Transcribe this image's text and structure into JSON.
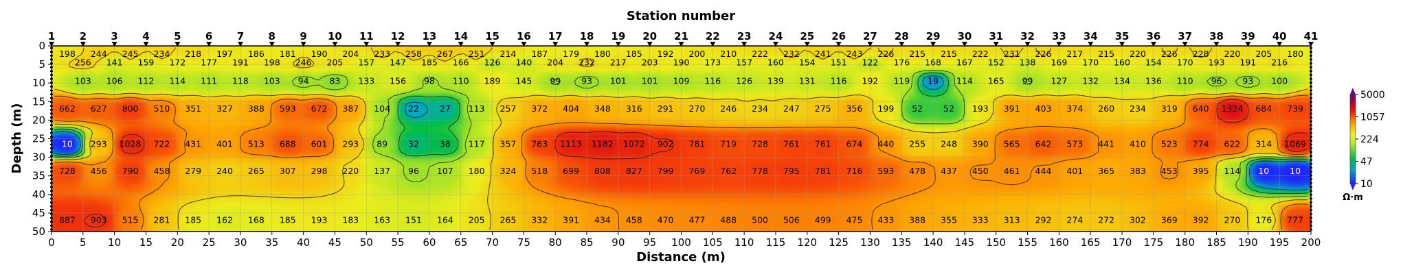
{
  "chart_data": {
    "type": "heatmap",
    "title": "",
    "x_top_label": "Station number",
    "xlabel": "Distance (m)",
    "ylabel": "Depth (m)",
    "xlim": [
      0,
      200
    ],
    "ylim": [
      50,
      0
    ],
    "log_color_scale": true,
    "grid": true,
    "x_ticks": [
      0,
      5,
      10,
      15,
      20,
      25,
      30,
      35,
      40,
      45,
      50,
      55,
      60,
      65,
      70,
      75,
      80,
      85,
      90,
      95,
      100,
      105,
      110,
      115,
      120,
      125,
      130,
      135,
      140,
      145,
      150,
      155,
      160,
      165,
      170,
      175,
      180,
      185,
      190,
      195,
      200
    ],
    "x_tick_labels": [
      "0",
      "5",
      "10",
      "15",
      "20",
      "25",
      "30",
      "35",
      "40",
      "45",
      "50",
      "55",
      "60",
      "65",
      "70",
      "75",
      "80",
      "85",
      "90",
      "95",
      "100",
      "105",
      "110",
      "115",
      "120",
      "125",
      "130",
      "135",
      "140",
      "145",
      "150",
      "155",
      "160",
      "165",
      "170",
      "175",
      "180",
      "185",
      "190",
      "195",
      "200"
    ],
    "y_ticks": [
      0,
      5,
      10,
      15,
      20,
      25,
      30,
      35,
      40,
      45,
      50
    ],
    "y_tick_labels": [
      "0",
      "5",
      "10",
      "15",
      "20",
      "25",
      "30",
      "35",
      "40",
      "45",
      "50"
    ],
    "stations": [
      "1",
      "2",
      "3",
      "4",
      "5",
      "6",
      "7",
      "8",
      "9",
      "10",
      "11",
      "12",
      "13",
      "14",
      "15",
      "16",
      "17",
      "18",
      "19",
      "20",
      "21",
      "22",
      "23",
      "24",
      "25",
      "26",
      "27",
      "28",
      "29",
      "30",
      "31",
      "32",
      "33",
      "34",
      "35",
      "36",
      "37",
      "38",
      "39",
      "40",
      "41"
    ],
    "colorbar": {
      "unit": "Ω·m",
      "ticks": [
        10,
        47,
        224,
        1057,
        5000
      ],
      "tick_labels": [
        "10",
        "47",
        "224",
        "1057",
        "5000"
      ]
    },
    "row_depths": [
      0.5,
      2.2,
      4.5,
      9.5,
      17,
      26.5,
      33.8,
      47
    ],
    "value_rows": [
      [
        "198",
        "244",
        "245",
        "234",
        "218",
        "197",
        "186",
        "181",
        "190",
        "204",
        "233",
        "258",
        "267",
        "251",
        "214",
        "187",
        "179",
        "180",
        "185",
        "192",
        "200",
        "210",
        "222",
        "232",
        "241",
        "243",
        "226",
        "215",
        "215",
        "222",
        "231",
        "226",
        "217",
        "215",
        "220",
        "226",
        "228",
        "220",
        "205",
        "180"
      ],
      [
        "256",
        "141",
        "159",
        "172",
        "177",
        "191",
        "198",
        "246",
        "205",
        "157",
        "147",
        "185",
        "166",
        "126",
        "140",
        "204",
        "232",
        "217",
        "203",
        "190",
        "173",
        "157",
        "160",
        "154",
        "151",
        "122",
        "176",
        "168",
        "167",
        "152",
        "138",
        "169",
        "170",
        "160",
        "154",
        "170",
        "193",
        "191",
        "216"
      ],
      [
        "103",
        "106",
        "112",
        "114",
        "111",
        "118",
        "103",
        "94",
        "83",
        "133",
        "156",
        "98",
        "110",
        "189",
        "145",
        "99",
        "93",
        "101",
        "101",
        "109",
        "116",
        "126",
        "139",
        "131",
        "116",
        "192",
        "119",
        "19",
        "114",
        "165",
        "99",
        "127",
        "132",
        "134",
        "136",
        "110",
        "96",
        "93",
        "100"
      ],
      [
        "662",
        "627",
        "800",
        "510",
        "351",
        "327",
        "388",
        "593",
        "672",
        "387",
        "104",
        "22",
        "27",
        "113",
        "257",
        "372",
        "404",
        "348",
        "316",
        "291",
        "270",
        "246",
        "234",
        "247",
        "275",
        "356",
        "199",
        "52",
        "52",
        "193",
        "391",
        "403",
        "374",
        "260",
        "234",
        "319",
        "640",
        "1324",
        "684",
        "739"
      ],
      [
        "10",
        "293",
        "1028",
        "722",
        "431",
        "401",
        "513",
        "688",
        "601",
        "293",
        "89",
        "32",
        "38",
        "117",
        "357",
        "763",
        "1113",
        "1182",
        "1072",
        "902",
        "781",
        "719",
        "728",
        "761",
        "761",
        "674",
        "440",
        "255",
        "248",
        "390",
        "565",
        "642",
        "573",
        "441",
        "410",
        "523",
        "774",
        "622",
        "314",
        "1069"
      ],
      [
        "728",
        "456",
        "790",
        "458",
        "279",
        "240",
        "265",
        "307",
        "298",
        "220",
        "137",
        "96",
        "107",
        "180",
        "324",
        "518",
        "699",
        "808",
        "827",
        "799",
        "769",
        "762",
        "778",
        "795",
        "781",
        "716",
        "593",
        "478",
        "437",
        "450",
        "461",
        "444",
        "401",
        "365",
        "383",
        "453",
        "395",
        "114",
        "10",
        "10"
      ],
      [
        "887",
        "903",
        "515",
        "281",
        "185",
        "162",
        "168",
        "185",
        "193",
        "183",
        "163",
        "151",
        "164",
        "205",
        "265",
        "332",
        "391",
        "434",
        "458",
        "470",
        "477",
        "488",
        "500",
        "506",
        "499",
        "475",
        "433",
        "388",
        "355",
        "333",
        "313",
        "292",
        "274",
        "272",
        "302",
        "369",
        "392",
        "270",
        "176",
        "777"
      ]
    ]
  },
  "colors": {
    "low": "#2020ff",
    "mid_low": "#00c04a",
    "mid": "#e6ee20",
    "mid_high": "#ff8c00",
    "high": "#d80000",
    "top": "#5a0f8c"
  }
}
